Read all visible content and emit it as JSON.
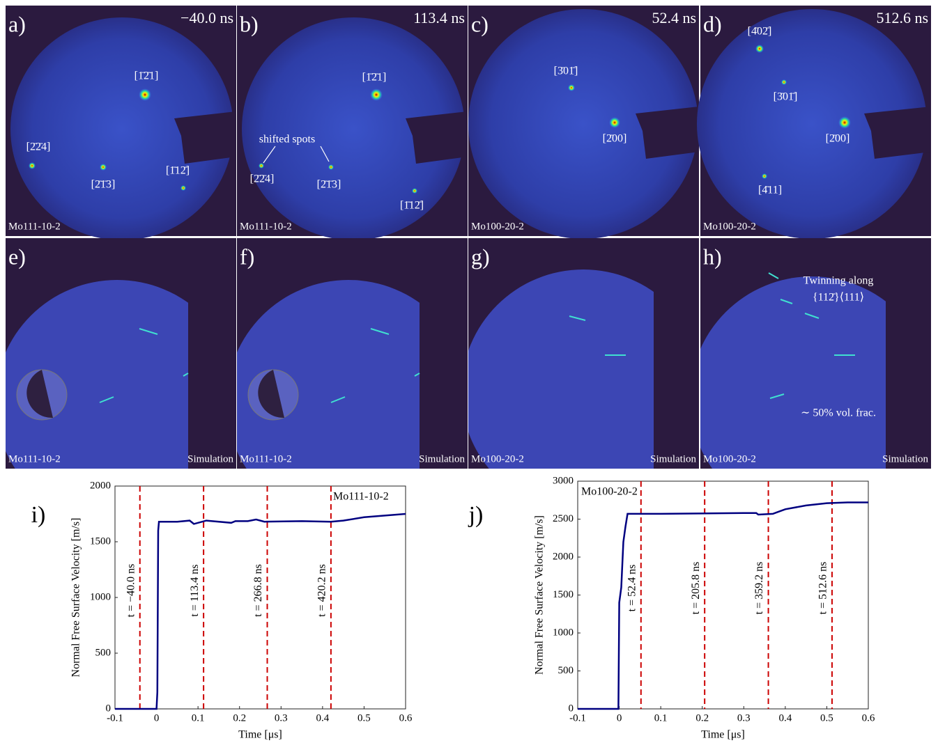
{
  "panels": [
    {
      "letter": "a)",
      "time": "−40.0 ns",
      "sample": "Mo111-10-2",
      "spots": [
        "[1̄2̄1]",
        "[2̄2̄4]",
        "[2̄1̄3]",
        "[1̄12̄]"
      ]
    },
    {
      "letter": "b)",
      "time": "113.4 ns",
      "sample": "Mo111-10-2",
      "spots": [
        "[1̄2̄1]",
        "[2̄2̄4]",
        "[2̄1̄3]",
        "[1̄12̄]"
      ],
      "annotations": [
        "shifted spots"
      ]
    },
    {
      "letter": "c)",
      "time": "52.4 ns",
      "sample": "Mo100-20-2",
      "spots": [
        "[3̄01̄]",
        "[2̄00]"
      ]
    },
    {
      "letter": "d)",
      "time": "512.6 ns",
      "sample": "Mo100-20-2",
      "spots": [
        "[4̄02̄]",
        "[3̄01̄]",
        "[2̄00]",
        "[4̄11]"
      ]
    },
    {
      "letter": "e)",
      "sample": "Mo111-10-2",
      "source": "Simulation"
    },
    {
      "letter": "f)",
      "sample": "Mo111-10-2",
      "source": "Simulation"
    },
    {
      "letter": "g)",
      "sample": "Mo100-20-2",
      "source": "Simulation"
    },
    {
      "letter": "h)",
      "sample": "Mo100-20-2",
      "source": "Simulation",
      "annotations": [
        "Twinning along",
        "{112̄}⟨111⟩",
        "∼ 50% vol. frac."
      ]
    }
  ],
  "chart_data": [
    {
      "type": "line",
      "panel": "i)",
      "annotation": "Mo111-10-2",
      "xlabel": "Time [μs]",
      "ylabel": "Normal Free Surface Velocity [m/s]",
      "xlim": [
        -0.1,
        0.6
      ],
      "xticks": [
        -0.1,
        0,
        0.1,
        0.2,
        0.3,
        0.4,
        0.5,
        0.6
      ],
      "ylim": [
        0,
        2000
      ],
      "yticks": [
        0,
        500,
        1000,
        1500,
        2000
      ],
      "color": "#000080",
      "x": [
        -0.1,
        0,
        0.002,
        0.004,
        0.006,
        0.05,
        0.08,
        0.09,
        0.12,
        0.18,
        0.19,
        0.22,
        0.24,
        0.26,
        0.35,
        0.42,
        0.45,
        0.5,
        0.55,
        0.6
      ],
      "values": [
        0,
        0,
        150,
        1600,
        1680,
        1680,
        1690,
        1660,
        1690,
        1670,
        1685,
        1685,
        1700,
        1680,
        1685,
        1680,
        1690,
        1720,
        1735,
        1750
      ],
      "vlines": [
        {
          "value": -0.04,
          "label": "t = −40.0 ns"
        },
        {
          "value": 0.1134,
          "label": "t = 113.4 ns"
        },
        {
          "value": 0.2668,
          "label": "t = 266.8 ns"
        },
        {
          "value": 0.4202,
          "label": "t = 420.2 ns"
        }
      ],
      "vline_color": "#cc0000"
    },
    {
      "type": "line",
      "panel": "j)",
      "annotation": "Mo100-20-2",
      "xlabel": "Time [μs]",
      "ylabel": "Normal Free Surface Velocity [m/s]",
      "xlim": [
        -0.1,
        0.6
      ],
      "xticks": [
        -0.1,
        0,
        0.1,
        0.2,
        0.3,
        0.4,
        0.5,
        0.6
      ],
      "ylim": [
        0,
        3000
      ],
      "yticks": [
        0,
        500,
        1000,
        1500,
        2000,
        2500,
        3000
      ],
      "color": "#000080",
      "x": [
        -0.1,
        -0.002,
        0,
        0.005,
        0.01,
        0.015,
        0.02,
        0.1,
        0.3,
        0.33,
        0.335,
        0.37,
        0.38,
        0.4,
        0.45,
        0.5,
        0.55,
        0.6
      ],
      "values": [
        0,
        0,
        1400,
        1600,
        2200,
        2400,
        2570,
        2570,
        2580,
        2580,
        2560,
        2570,
        2590,
        2630,
        2680,
        2710,
        2720,
        2720
      ],
      "vlines": [
        {
          "value": 0.0524,
          "label": "t = 52.4 ns"
        },
        {
          "value": 0.2058,
          "label": "t = 205.8 ns"
        },
        {
          "value": 0.3592,
          "label": "t = 359.2 ns"
        },
        {
          "value": 0.5126,
          "label": "t = 512.6 ns"
        }
      ],
      "vline_color": "#cc0000"
    }
  ]
}
